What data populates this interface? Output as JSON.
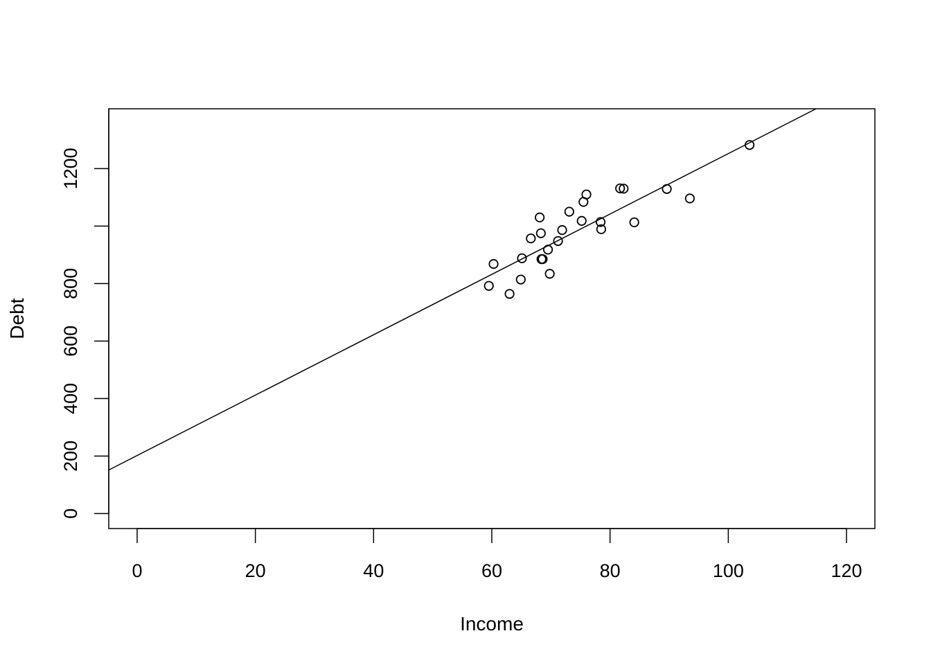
{
  "chart_data": {
    "type": "scatter",
    "title": "",
    "xlabel": "Income",
    "ylabel": "Debt",
    "xlim": [
      -4.8,
      124.8
    ],
    "ylim": [
      -52,
      1408
    ],
    "xticks": [
      0,
      20,
      40,
      60,
      80,
      100,
      120
    ],
    "yticks": [
      0,
      200,
      400,
      600,
      800,
      1000,
      1200
    ],
    "ytick_labels": [
      "0",
      "200",
      "400",
      "600",
      "800",
      "",
      "1200"
    ],
    "grid": false,
    "legend": "none",
    "series": [
      {
        "points": [
          [
            59.5,
            792
          ],
          [
            60.3,
            868
          ],
          [
            63.0,
            764
          ],
          [
            64.9,
            814
          ],
          [
            65.1,
            888
          ],
          [
            66.6,
            957
          ],
          [
            68.1,
            1030
          ],
          [
            68.3,
            975
          ],
          [
            68.4,
            885
          ],
          [
            68.6,
            885
          ],
          [
            69.5,
            918
          ],
          [
            69.8,
            834
          ],
          [
            71.2,
            948
          ],
          [
            71.9,
            986
          ],
          [
            73.1,
            1050
          ],
          [
            75.2,
            1018
          ],
          [
            75.5,
            1084
          ],
          [
            76.0,
            1110
          ],
          [
            78.4,
            1014
          ],
          [
            78.5,
            989
          ],
          [
            81.7,
            1131
          ],
          [
            82.3,
            1130
          ],
          [
            84.1,
            1013
          ],
          [
            89.6,
            1129
          ],
          [
            93.5,
            1096
          ],
          [
            103.6,
            1282
          ]
        ]
      }
    ],
    "regression_line": {
      "intercept": 202,
      "slope": 10.5
    }
  }
}
